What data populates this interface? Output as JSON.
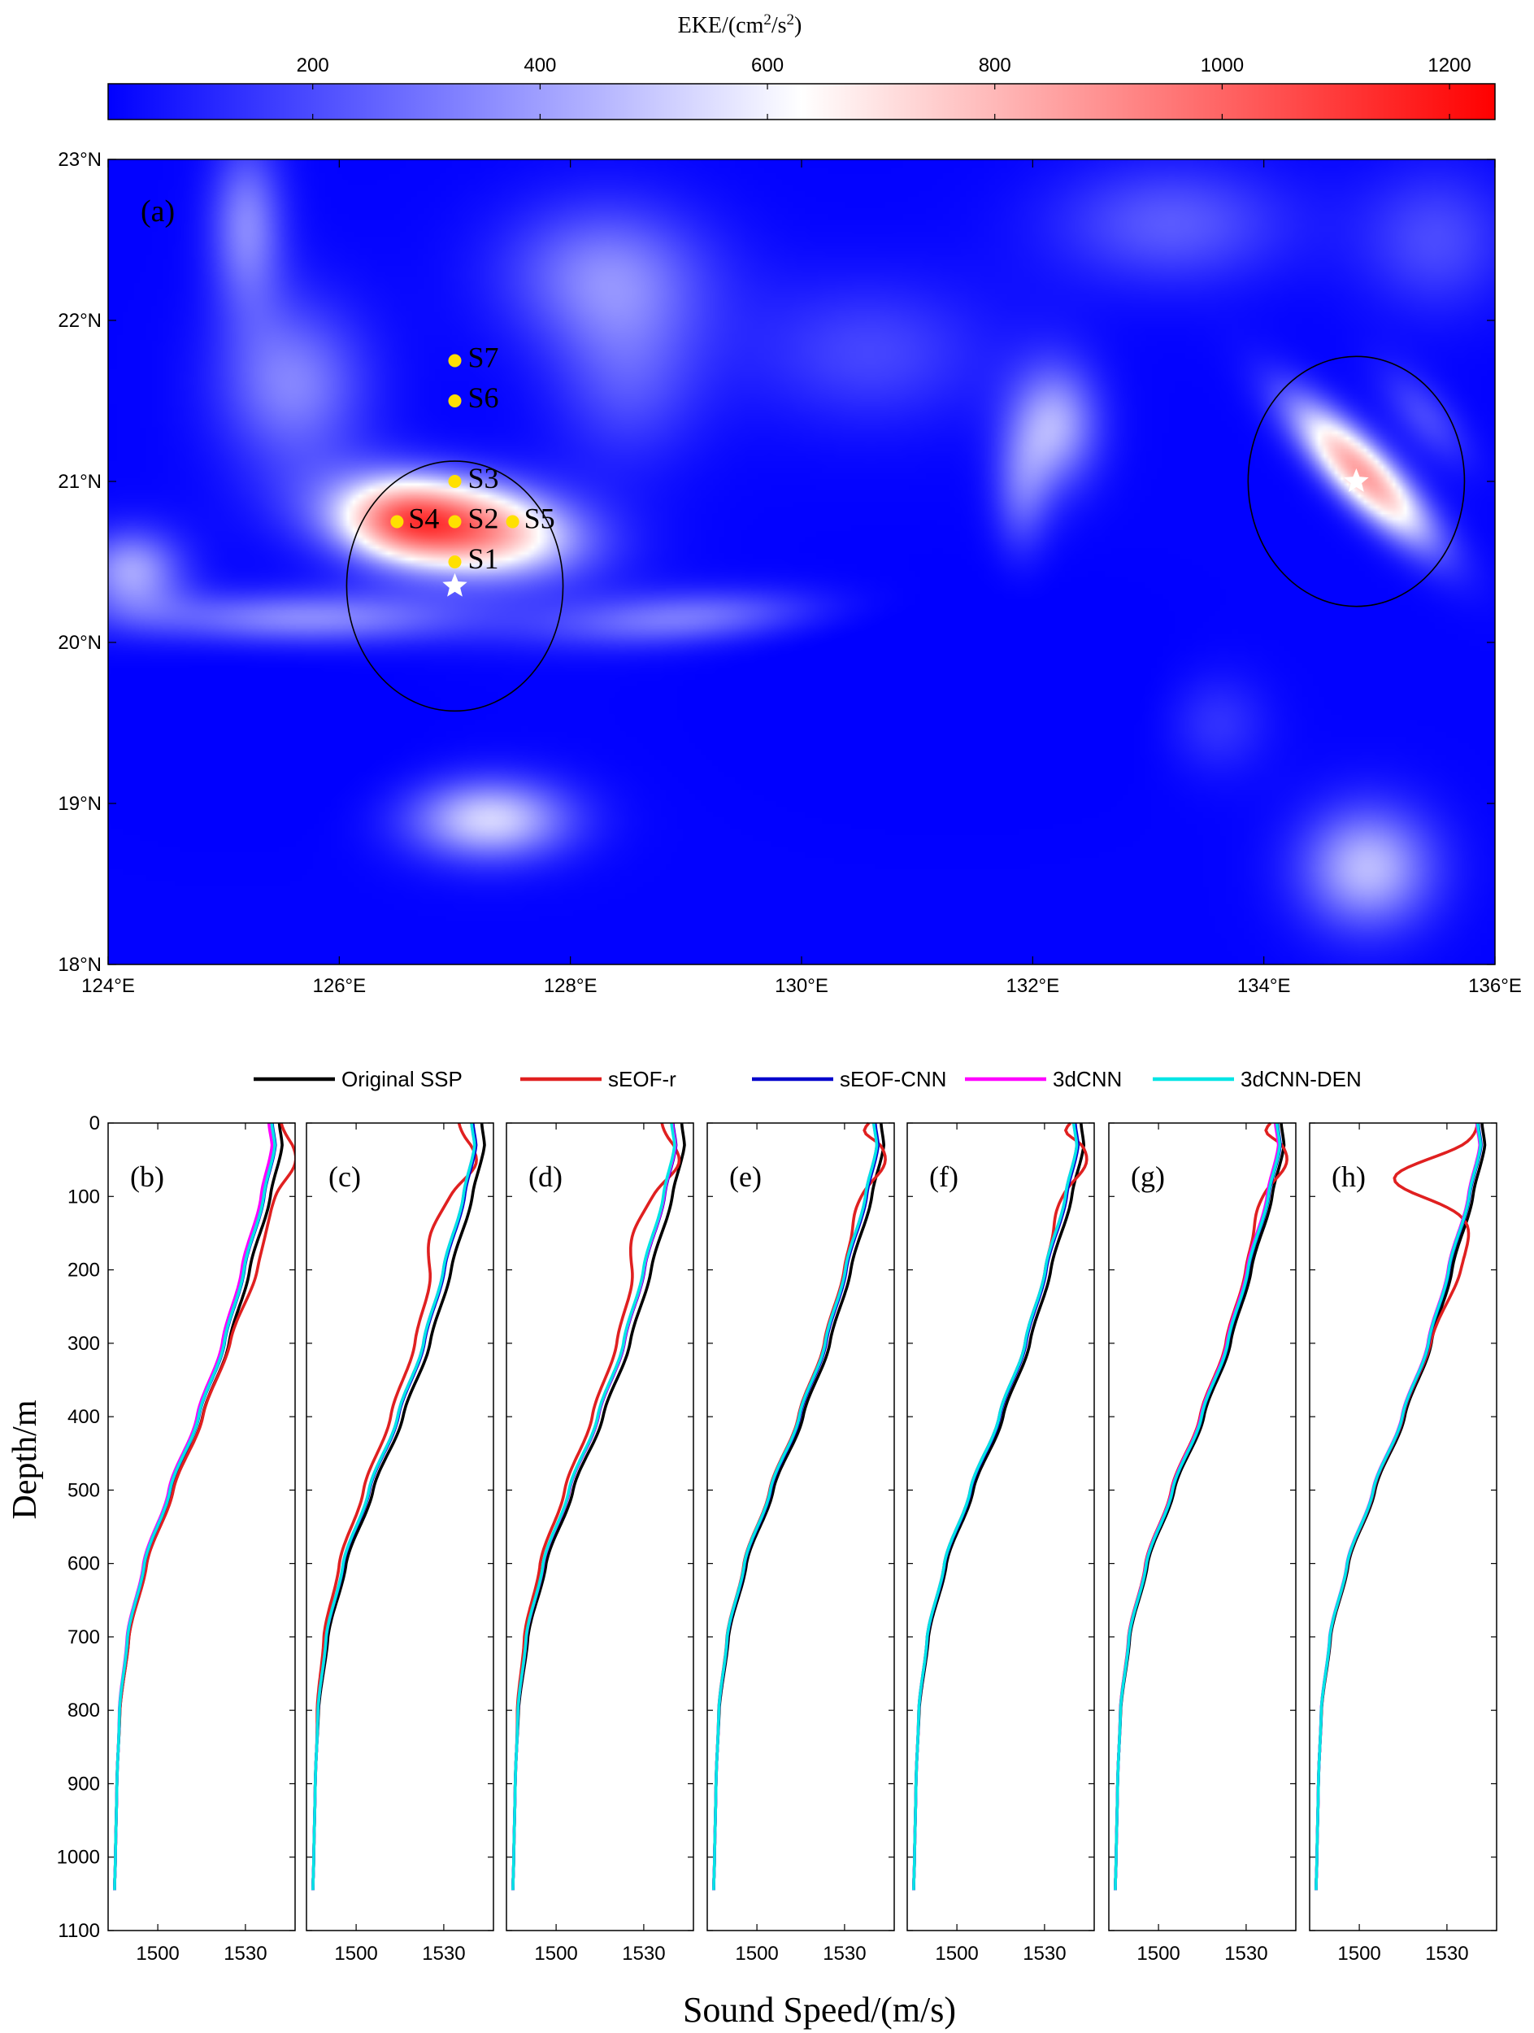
{
  "colorbar": {
    "title_base": "EKE/(cm",
    "title_sup1": "2",
    "title_mid": "/s",
    "title_sup2": "2",
    "title_end": ")",
    "range": [
      20,
      1240
    ],
    "ticks": [
      "200",
      "400",
      "600",
      "800",
      "1000",
      "1200"
    ],
    "tick_values": [
      200,
      400,
      600,
      800,
      1000,
      1200
    ],
    "colors": [
      "#0000ff",
      "#ffffff",
      "#ff0000"
    ],
    "center_value": 630
  },
  "map": {
    "panel_label": "(a)",
    "lon_range": [
      124,
      136
    ],
    "lat_range": [
      18,
      23
    ],
    "lon_ticks": [
      {
        "v": 124,
        "label": "124°E"
      },
      {
        "v": 126,
        "label": "126°E"
      },
      {
        "v": 128,
        "label": "128°E"
      },
      {
        "v": 130,
        "label": "130°E"
      },
      {
        "v": 132,
        "label": "132°E"
      },
      {
        "v": 134,
        "label": "134°E"
      },
      {
        "v": 136,
        "label": "136°E"
      }
    ],
    "lat_ticks": [
      {
        "v": 23,
        "label": "23°N"
      },
      {
        "v": 22,
        "label": "22°N"
      },
      {
        "v": 21,
        "label": "21°N"
      },
      {
        "v": 20,
        "label": "20°N"
      },
      {
        "v": 19,
        "label": "19°N"
      },
      {
        "v": 18,
        "label": "18°N"
      }
    ],
    "stations": [
      {
        "name": "S1",
        "lon": 127.0,
        "lat": 20.5
      },
      {
        "name": "S2",
        "lon": 127.0,
        "lat": 20.75
      },
      {
        "name": "S3",
        "lon": 127.0,
        "lat": 21.0
      },
      {
        "name": "S4",
        "lon": 126.5,
        "lat": 20.75
      },
      {
        "name": "S5",
        "lon": 127.5,
        "lat": 20.75
      },
      {
        "name": "S6",
        "lon": 127.0,
        "lat": 21.5
      },
      {
        "name": "S7",
        "lon": 127.0,
        "lat": 21.75
      }
    ],
    "eddies": [
      {
        "center_lon": 127.0,
        "center_lat": 20.35,
        "radius_deg": 0.8,
        "peak_eke": 1220
      },
      {
        "center_lon": 134.8,
        "center_lat": 21.0,
        "radius_deg": 0.8,
        "peak_eke": 1100
      }
    ],
    "eke_blobs": [
      {
        "lon": 127.0,
        "lat": 20.72,
        "slon": 0.75,
        "slat": 0.22,
        "value": 950,
        "rot": -0.08
      },
      {
        "lon": 126.5,
        "lat": 20.75,
        "slon": 0.35,
        "slat": 0.18,
        "value": 250,
        "rot": 0
      },
      {
        "lon": 134.85,
        "lat": 21.05,
        "slon": 0.55,
        "slat": 0.16,
        "value": 820,
        "rot": -0.6
      },
      {
        "lon": 135.4,
        "lat": 21.4,
        "slon": 0.35,
        "slat": 0.15,
        "value": 220,
        "rot": -0.6
      },
      {
        "lon": 132.2,
        "lat": 21.35,
        "slon": 0.3,
        "slat": 0.3,
        "value": 420,
        "rot": 0
      },
      {
        "lon": 131.9,
        "lat": 20.9,
        "slon": 0.2,
        "slat": 0.3,
        "value": 250,
        "rot": 0
      },
      {
        "lon": 124.2,
        "lat": 20.45,
        "slon": 0.35,
        "slat": 0.2,
        "value": 420,
        "rot": 0
      },
      {
        "lon": 125.7,
        "lat": 20.15,
        "slon": 1.1,
        "slat": 0.13,
        "value": 380,
        "rot": 0
      },
      {
        "lon": 129.0,
        "lat": 20.15,
        "slon": 0.9,
        "slat": 0.13,
        "value": 340,
        "rot": 0.05
      },
      {
        "lon": 127.3,
        "lat": 18.9,
        "slon": 0.55,
        "slat": 0.2,
        "value": 520,
        "rot": 0
      },
      {
        "lon": 134.9,
        "lat": 18.6,
        "slon": 0.45,
        "slat": 0.3,
        "value": 470,
        "rot": 0
      },
      {
        "lon": 133.6,
        "lat": 19.5,
        "slon": 0.35,
        "slat": 0.25,
        "value": 180,
        "rot": 0
      },
      {
        "lon": 125.2,
        "lat": 22.6,
        "slon": 0.25,
        "slat": 0.4,
        "value": 360,
        "rot": 0
      },
      {
        "lon": 125.6,
        "lat": 21.6,
        "slon": 0.5,
        "slat": 0.4,
        "value": 360,
        "rot": 0
      },
      {
        "lon": 128.3,
        "lat": 22.3,
        "slon": 0.7,
        "slat": 0.35,
        "value": 340,
        "rot": 0
      },
      {
        "lon": 128.5,
        "lat": 21.6,
        "slon": 0.5,
        "slat": 0.4,
        "value": 230,
        "rot": 0
      },
      {
        "lon": 130.6,
        "lat": 21.8,
        "slon": 0.8,
        "slat": 0.35,
        "value": 220,
        "rot": 0
      },
      {
        "lon": 133.2,
        "lat": 22.6,
        "slon": 0.8,
        "slat": 0.3,
        "value": 270,
        "rot": 0
      },
      {
        "lon": 135.5,
        "lat": 22.5,
        "slon": 0.5,
        "slat": 0.35,
        "value": 230,
        "rot": 0
      },
      {
        "lon": 131.3,
        "lat": 19.7,
        "slon": 1.2,
        "slat": 0.45,
        "value": -90,
        "rot": 0
      },
      {
        "lon": 125.2,
        "lat": 19.4,
        "slon": 1.0,
        "slat": 0.4,
        "value": -60,
        "rot": 0
      }
    ]
  },
  "legend": {
    "items": [
      {
        "label": "Original SSP",
        "color": "#000000"
      },
      {
        "label": "sEOF-r",
        "color": "#e02020"
      },
      {
        "label": "sEOF-CNN",
        "color": "#0000cc"
      },
      {
        "label": "3dCNN",
        "color": "#ff00ff"
      },
      {
        "label": "3dCNN-DEN",
        "color": "#00e5e5"
      }
    ]
  },
  "profiles": {
    "ylabel": "Depth/m",
    "xlabel": "Sound Speed/(m/s)",
    "depth_range": [
      0,
      1100
    ],
    "xlim": [
      1483,
      1547
    ],
    "x_ticks": [
      1500,
      1530
    ],
    "depth_ticks": [
      0,
      100,
      200,
      300,
      400,
      500,
      600,
      700,
      800,
      900,
      1000,
      1100
    ],
    "panels": [
      {
        "label": "(b)",
        "red_type": "bulge",
        "red_shift": 0.8,
        "cyan_shift": -2.0,
        "black_shift": 0.6,
        "blue_shift": -1.8,
        "mag_shift": -3.0
      },
      {
        "label": "(c)",
        "red_type": "shift",
        "red_shift": -6.0,
        "cyan_shift": -1.5,
        "black_shift": 2.0,
        "blue_shift": -1.0,
        "mag_shift": -1.5
      },
      {
        "label": "(d)",
        "red_type": "shift",
        "red_shift": -5.0,
        "cyan_shift": -1.5,
        "black_shift": 2.0,
        "blue_shift": -1.0,
        "mag_shift": -1.2
      },
      {
        "label": "(e)",
        "red_type": "hook",
        "red_shift": -1.5,
        "cyan_shift": -1.0,
        "black_shift": 1.5,
        "blue_shift": -0.5,
        "mag_shift": -1.0
      },
      {
        "label": "(f)",
        "red_type": "hook",
        "red_shift": -1.0,
        "cyan_shift": -1.0,
        "black_shift": 1.5,
        "blue_shift": -0.5,
        "mag_shift": -1.0
      },
      {
        "label": "(g)",
        "red_type": "hook",
        "red_shift": -1.5,
        "cyan_shift": -0.5,
        "black_shift": 1.0,
        "blue_shift": -0.3,
        "mag_shift": -1.0
      },
      {
        "label": "(h)",
        "red_type": "dip",
        "red_shift": 0.0,
        "cyan_shift": -0.5,
        "black_shift": 1.0,
        "blue_shift": -0.3,
        "mag_shift": -0.8
      }
    ]
  },
  "chart_data": [
    {
      "type": "heatmap",
      "title": "",
      "xlabel": "",
      "ylabel": "",
      "x_range": [
        124,
        136
      ],
      "y_range": [
        18,
        23
      ],
      "colorbar_label": "EKE/(cm2/s2)",
      "colorbar_range": [
        20,
        1240
      ],
      "points": [
        {
          "name": "S1",
          "x": 127.0,
          "y": 20.5
        },
        {
          "name": "S2",
          "x": 127.0,
          "y": 20.75
        },
        {
          "name": "S3",
          "x": 127.0,
          "y": 21.0
        },
        {
          "name": "S4",
          "x": 126.5,
          "y": 20.75
        },
        {
          "name": "S5",
          "x": 127.5,
          "y": 20.75
        },
        {
          "name": "S6",
          "x": 127.0,
          "y": 21.5
        },
        {
          "name": "S7",
          "x": 127.0,
          "y": 21.75
        }
      ]
    },
    {
      "type": "line",
      "title": "",
      "xlabel": "Sound Speed/(m/s)",
      "ylabel": "Depth/m",
      "series_names": [
        "Original SSP",
        "sEOF-r",
        "sEOF-CNN",
        "3dCNN",
        "3dCNN-DEN"
      ],
      "panels": [
        "(b)",
        "(c)",
        "(d)",
        "(e)",
        "(f)",
        "(g)",
        "(h)"
      ],
      "x_ticks": [
        1500,
        1530
      ],
      "ylim": [
        0,
        1100
      ],
      "base_profile": {
        "depth": [
          0,
          30,
          100,
          200,
          300,
          400,
          500,
          600,
          700,
          800,
          900,
          1000,
          1045
        ],
        "speed": [
          1541,
          1542,
          1538,
          1531,
          1524,
          1515,
          1505,
          1496,
          1490,
          1487,
          1486,
          1485.5,
          1485.2
        ]
      }
    }
  ]
}
